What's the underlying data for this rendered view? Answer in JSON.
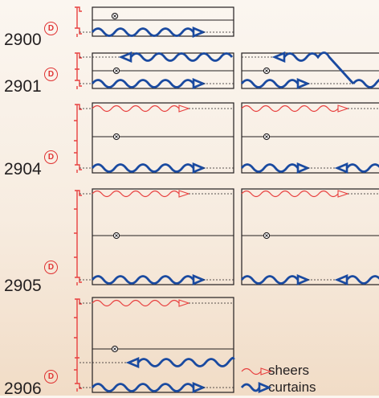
{
  "codes": [
    {
      "id": "2900",
      "label": "2900",
      "badge": "D"
    },
    {
      "id": "2901",
      "label": "2901",
      "badge": "D"
    },
    {
      "id": "2904",
      "label": "2904",
      "badge": "D"
    },
    {
      "id": "2905",
      "label": "2905",
      "badge": "D"
    },
    {
      "id": "2906",
      "label": "2906",
      "badge": "D"
    }
  ],
  "legend": {
    "sheers": "sheers",
    "curtains": "curtains"
  },
  "colors": {
    "sheer": "#e8403f",
    "curtain": "#1a4aa0",
    "rail": "#231f20",
    "dash": "#231f20"
  }
}
